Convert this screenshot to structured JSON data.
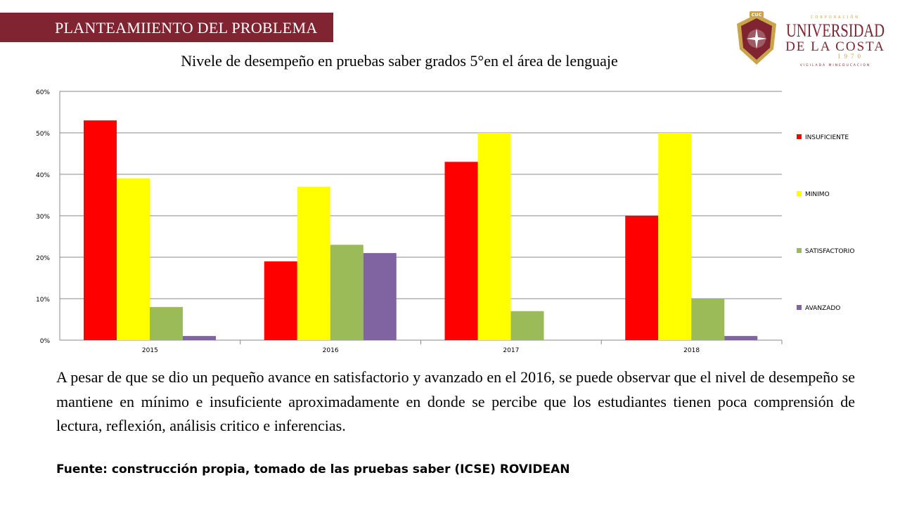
{
  "header": {
    "title": "PLANTEAMIIENTO DEL PROBLEMA"
  },
  "logo": {
    "top_text": "CUC",
    "corp_text": "CORPORACIÓN",
    "line1": "UNIVERSIDAD",
    "line2": "DE LA COSTA",
    "year": "1970",
    "tagline": "VIGILADA MINEDUCACIÓN",
    "colors": {
      "maroon": "#7f2430",
      "gold": "#c9a449"
    }
  },
  "chart_title": "Nivele de desempeño en  pruebas saber grados 5°en el área de lenguaje",
  "chart_data": {
    "type": "bar",
    "categories": [
      "2015",
      "2016",
      "2017",
      "2018"
    ],
    "series": [
      {
        "name": "INSUFICIENTE",
        "color": "#ff0000",
        "values": [
          0.53,
          0.19,
          0.43,
          0.3
        ]
      },
      {
        "name": "MINIMO",
        "color": "#ffff00",
        "values": [
          0.39,
          0.37,
          0.5,
          0.5
        ]
      },
      {
        "name": "SATISFACTORIO",
        "color": "#9bbb59",
        "values": [
          0.08,
          0.23,
          0.07,
          0.1
        ]
      },
      {
        "name": "AVANZADO",
        "color": "#8064a2",
        "values": [
          0.01,
          0.21,
          0.0,
          0.01
        ]
      }
    ],
    "ylim": [
      0,
      0.6
    ],
    "yticks": [
      "0%",
      "10%",
      "20%",
      "30%",
      "40%",
      "50%",
      "60%"
    ],
    "grid": true,
    "legend_position": "right"
  },
  "body": {
    "paragraph": "A pesar de que se dio un pequeño avance en satisfactorio y avanzado en el 2016, se puede observar que el nivel de desempeño se mantiene en mínimo  e insuficiente  aproximadamente en donde se percibe que los estudiantes  tienen poca comprensión de lectura, reflexión, análisis critico e inferencias."
  },
  "source": "Fuente: construcción propia, tomado de las pruebas saber (ICSE) ROVIDEAN"
}
